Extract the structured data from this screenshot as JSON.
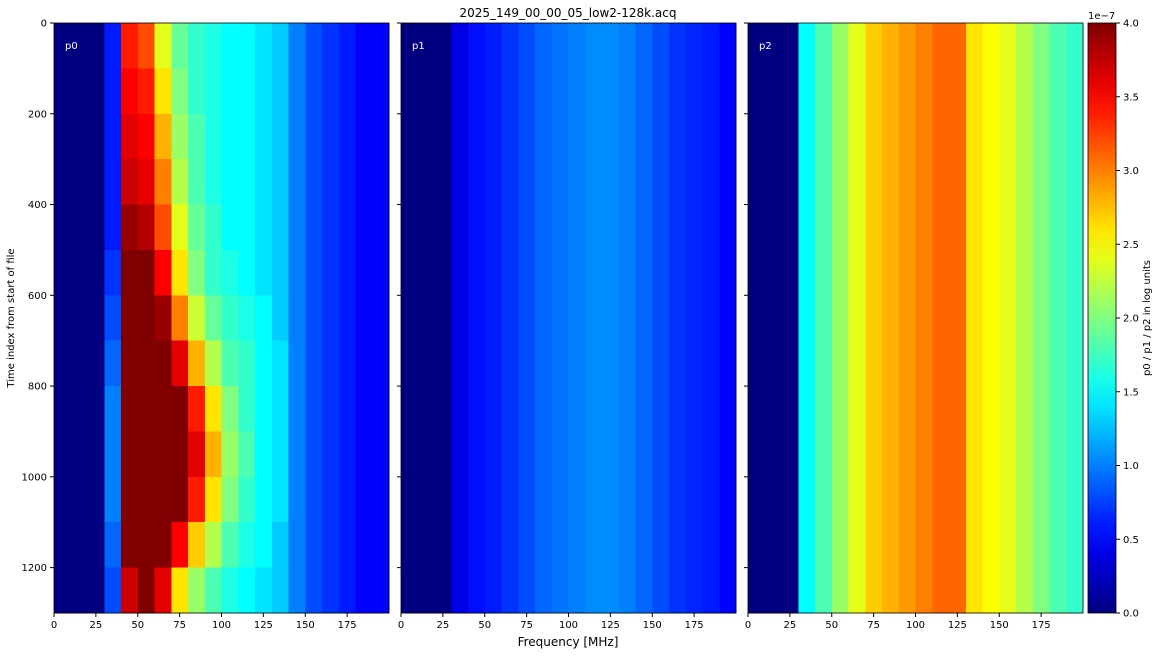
{
  "chart_data": {
    "type": "heatmap",
    "title": "2025_149_00_00_05_low2-128k.acq",
    "xlabel": "Frequency [MHz]",
    "ylabel": "Time index from start of file",
    "colorbar_label": "p0 / p1 / p2 in log units",
    "colorbar_offset": "1e−7",
    "colormap": "jet",
    "clim": [
      0,
      4
    ],
    "cticks": [
      {
        "value": 0,
        "label": "0.0"
      },
      {
        "value": 0.5,
        "label": "0.5"
      },
      {
        "value": 1,
        "label": "1.0"
      },
      {
        "value": 1.5,
        "label": "1.5"
      },
      {
        "value": 2,
        "label": "2.0"
      },
      {
        "value": 2.5,
        "label": "2.5"
      },
      {
        "value": 3,
        "label": "3.0"
      },
      {
        "value": 3.5,
        "label": "3.5"
      },
      {
        "value": 4,
        "label": "4.0"
      }
    ],
    "xlim": [
      0,
      200
    ],
    "xticks": [
      0,
      25,
      50,
      75,
      100,
      125,
      150,
      175
    ],
    "ylim": [
      1300,
      0
    ],
    "yticks": [
      0,
      200,
      400,
      600,
      800,
      1000,
      1200
    ],
    "x_bins": [
      0,
      10,
      20,
      30,
      40,
      50,
      60,
      70,
      80,
      90,
      100,
      110,
      120,
      130,
      140,
      150,
      160,
      170,
      180,
      190,
      200
    ],
    "panels": [
      {
        "name": "p0",
        "y_bins": [
          0,
          100,
          200,
          300,
          400,
          500,
          600,
          700,
          800,
          900,
          1000,
          1100,
          1200,
          1300
        ],
        "values": [
          [
            0,
            0,
            0,
            0.6,
            3.4,
            3.2,
            2.4,
            1.9,
            1.7,
            1.6,
            1.5,
            1.5,
            1.4,
            1.3,
            1.0,
            0.8,
            0.7,
            0.6,
            0.5,
            0.5
          ],
          [
            0,
            0,
            0,
            0.6,
            3.5,
            3.4,
            2.6,
            2.0,
            1.7,
            1.6,
            1.5,
            1.5,
            1.4,
            1.3,
            1.0,
            0.8,
            0.7,
            0.6,
            0.5,
            0.5
          ],
          [
            0,
            0,
            0,
            0.6,
            3.6,
            3.5,
            2.8,
            2.1,
            1.8,
            1.6,
            1.5,
            1.5,
            1.4,
            1.3,
            1.0,
            0.8,
            0.7,
            0.6,
            0.5,
            0.5
          ],
          [
            0,
            0,
            0,
            0.6,
            3.7,
            3.6,
            3.0,
            2.2,
            1.8,
            1.6,
            1.5,
            1.5,
            1.4,
            1.3,
            1.0,
            0.8,
            0.7,
            0.6,
            0.5,
            0.5
          ],
          [
            0,
            0,
            0,
            0.6,
            3.9,
            3.8,
            3.2,
            2.4,
            1.9,
            1.7,
            1.5,
            1.5,
            1.4,
            1.3,
            1.0,
            0.8,
            0.7,
            0.6,
            0.5,
            0.5
          ],
          [
            0,
            0,
            0,
            0.7,
            4,
            4,
            3.5,
            2.6,
            2.0,
            1.7,
            1.6,
            1.5,
            1.4,
            1.3,
            1.0,
            0.8,
            0.7,
            0.6,
            0.5,
            0.5
          ],
          [
            0,
            0,
            0,
            0.8,
            4,
            4,
            3.9,
            3.0,
            2.3,
            1.9,
            1.7,
            1.6,
            1.5,
            1.3,
            1.0,
            0.8,
            0.7,
            0.6,
            0.5,
            0.5
          ],
          [
            0,
            0,
            0,
            0.9,
            4,
            4,
            4,
            3.6,
            2.8,
            2.2,
            1.8,
            1.7,
            1.5,
            1.4,
            1.0,
            0.8,
            0.7,
            0.6,
            0.5,
            0.5
          ],
          [
            0,
            0,
            0,
            1.0,
            4,
            4,
            4,
            4,
            3.4,
            2.6,
            2.0,
            1.7,
            1.5,
            1.4,
            1.0,
            0.8,
            0.7,
            0.6,
            0.5,
            0.5
          ],
          [
            0,
            0,
            0,
            1.0,
            4,
            4,
            4,
            4,
            3.6,
            2.8,
            2.1,
            1.8,
            1.5,
            1.4,
            1.0,
            0.8,
            0.7,
            0.6,
            0.5,
            0.5
          ],
          [
            0,
            0,
            0,
            1.0,
            4,
            4,
            4,
            4,
            3.4,
            2.6,
            2.0,
            1.7,
            1.5,
            1.4,
            1.0,
            0.8,
            0.7,
            0.6,
            0.5,
            0.5
          ],
          [
            0,
            0,
            0,
            0.9,
            4,
            4,
            4,
            3.5,
            2.7,
            2.2,
            1.8,
            1.6,
            1.5,
            1.3,
            1.0,
            0.8,
            0.7,
            0.6,
            0.5,
            0.5
          ],
          [
            0,
            0,
            0,
            0.8,
            3.7,
            4,
            3.6,
            2.6,
            2.1,
            1.8,
            1.6,
            1.5,
            1.4,
            1.3,
            1.0,
            0.8,
            0.7,
            0.6,
            0.5,
            0.5
          ]
        ]
      },
      {
        "name": "p1",
        "y_bins": [
          0,
          1300
        ],
        "values": [
          [
            0,
            0,
            0,
            0.4,
            0.55,
            0.6,
            0.7,
            0.8,
            0.9,
            0.95,
            1.0,
            1.05,
            1.05,
            1.0,
            0.9,
            0.8,
            0.7,
            0.65,
            0.6,
            0.5
          ]
        ]
      },
      {
        "name": "p2",
        "y_bins": [
          0,
          1300
        ],
        "values": [
          [
            0,
            0,
            0,
            1.5,
            1.8,
            2.1,
            2.4,
            2.7,
            2.8,
            2.9,
            3.0,
            3.1,
            3.1,
            2.6,
            2.5,
            2.4,
            2.2,
            2.0,
            1.8,
            1.7
          ]
        ]
      }
    ]
  }
}
